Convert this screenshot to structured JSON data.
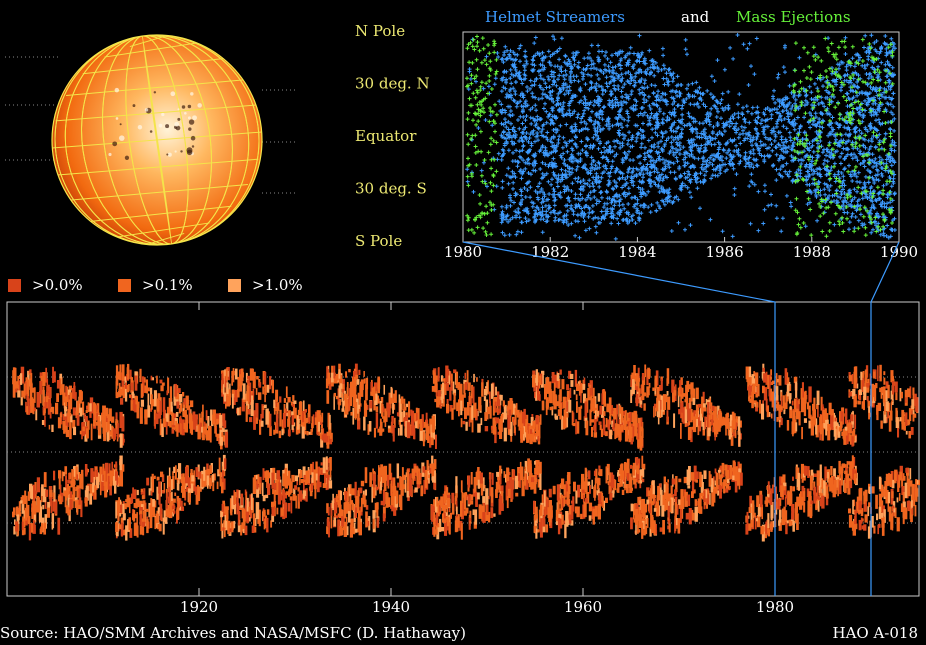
{
  "top_panel": {
    "legend": [
      {
        "name": "Helmet Streamers",
        "color": "#3d9bff"
      },
      {
        "name": "and",
        "color": "#ffffff"
      },
      {
        "name": "Mass Ejections",
        "color": "#66f23a"
      }
    ],
    "latitude_labels": [
      "N Pole",
      "30 deg. N",
      "Equator",
      "30 deg. S",
      "S Pole"
    ],
    "xlim": [
      1980,
      1990
    ],
    "xticks": [
      1980,
      1982,
      1984,
      1986,
      1988,
      1990
    ]
  },
  "legend": [
    {
      "label": ">0.0%",
      "color": "#d8431a"
    },
    {
      "label": ">0.1%",
      "color": "#f0651f"
    },
    {
      "label": ">1.0%",
      "color": "#ffa35c"
    }
  ],
  "bottom_panel": {
    "xlim": [
      1900,
      1995
    ],
    "xticks": [
      1920,
      1940,
      1960,
      1980
    ]
  },
  "footer": {
    "source": "Source: HAO/SMM Archives and NASA/MSFC (D. Hathaway)",
    "id": "HAO A-018"
  }
}
